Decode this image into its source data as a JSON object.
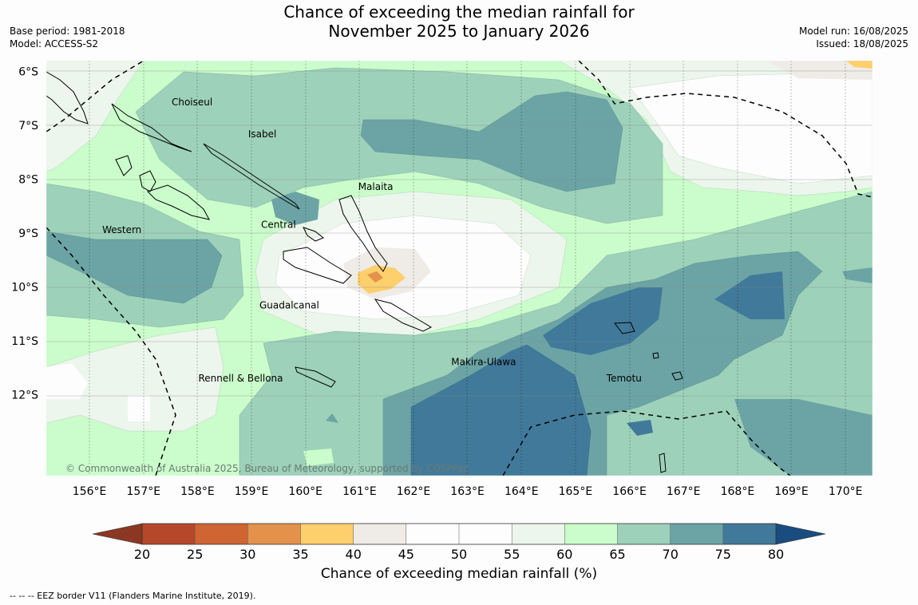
{
  "header": {
    "title_line1": "Chance of exceeding the median rainfall for",
    "title_line2": "November 2025 to January 2026",
    "base_period": "Base period: 1981-2018",
    "model": "Model: ACCESS-S2",
    "model_run": "Model run: 16/08/2025",
    "issued": "Issued: 18/08/2025"
  },
  "map": {
    "lon_labels": [
      "156°E",
      "157°E",
      "158°E",
      "159°E",
      "160°E",
      "161°E",
      "162°E",
      "163°E",
      "164°E",
      "165°E",
      "166°E",
      "167°E",
      "168°E",
      "169°E",
      "170°E"
    ],
    "lat_labels": [
      "6°S",
      "7°S",
      "8°S",
      "9°S",
      "10°S",
      "11°S",
      "12°S"
    ],
    "region_labels": [
      {
        "text": "Choiseul",
        "lon": 157.9,
        "lat": -6.63
      },
      {
        "text": "Isabel",
        "lon": 159.2,
        "lat": -7.22
      },
      {
        "text": "Malaita",
        "lon": 161.3,
        "lat": -8.2
      },
      {
        "text": "Western",
        "lon": 156.6,
        "lat": -9.0
      },
      {
        "text": "Central",
        "lon": 159.5,
        "lat": -8.9
      },
      {
        "text": "Guadalcanal",
        "lon": 159.7,
        "lat": -10.4
      },
      {
        "text": "Makira-Ulawa",
        "lon": 163.3,
        "lat": -11.45
      },
      {
        "text": "Rennell & Bellona",
        "lon": 158.8,
        "lat": -11.75
      },
      {
        "text": "Temotu",
        "lon": 165.9,
        "lat": -11.75
      }
    ],
    "copyright": "© Commonwealth of Australia 2025, Bureau of Meteorology, supported by COSPPac"
  },
  "colorbar": {
    "ticks": [
      "20",
      "25",
      "30",
      "35",
      "40",
      "45",
      "50",
      "55",
      "60",
      "65",
      "70",
      "75",
      "80"
    ],
    "colors": [
      "#b5482a",
      "#ce6533",
      "#e3914b",
      "#fdcf6d",
      "#efebe6",
      "#fcfdfc",
      "#fcfdfc",
      "#ecf6ec",
      "#cbfccb",
      "#9dd1ba",
      "#6ca4a5",
      "#41799a"
    ],
    "under_color": "#8b3722",
    "over_color": "#1a4c80",
    "label": "Chance of exceeding median rainfall (%)"
  },
  "footer": {
    "legend": "--  --  -- EEZ border V11 (Flanders Marine Institute, 2019)."
  }
}
